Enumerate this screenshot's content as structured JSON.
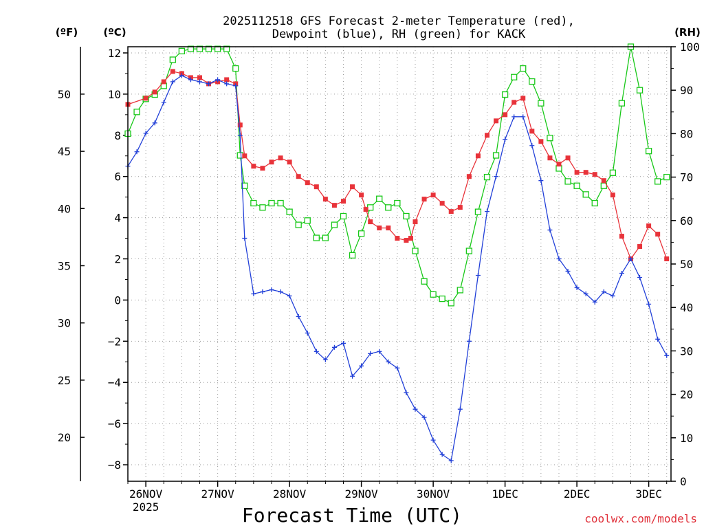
{
  "title_line1": "2025112518 GFS Forecast 2-meter Temperature (red),",
  "title_line2": "Dewpoint (blue), RH (green) for KACK",
  "axis_units": {
    "f": "(ºF)",
    "c": "(ºC)",
    "rh": "(RH)"
  },
  "xlabel": "Forecast Time (UTC)",
  "credit": "coolwx.com/models",
  "colors": {
    "temperature": "#e8333a",
    "dewpoint": "#2240d8",
    "rh": "#18c818",
    "axis": "#000000"
  },
  "chart_data": {
    "type": "line",
    "title": "2025112518 GFS Forecast 2-meter Temperature (red), Dewpoint (blue), RH (green) for KACK",
    "xlabel": "Forecast Time (UTC)",
    "x_unit": "days since 26NOV 00Z",
    "xlim": [
      -0.25,
      7.31
    ],
    "x_ticks": [
      {
        "value": 0,
        "label": "26NOV",
        "sublabel": "2025"
      },
      {
        "value": 1,
        "label": "27NOV",
        "sublabel": ""
      },
      {
        "value": 2,
        "label": "28NOV",
        "sublabel": ""
      },
      {
        "value": 3,
        "label": "29NOV",
        "sublabel": ""
      },
      {
        "value": 4,
        "label": "30NOV",
        "sublabel": ""
      },
      {
        "value": 5,
        "label": "1DEC",
        "sublabel": ""
      },
      {
        "value": 6,
        "label": "2DEC",
        "sublabel": ""
      },
      {
        "value": 7,
        "label": "3DEC",
        "sublabel": ""
      }
    ],
    "ylabel_celsius": "(ºC)",
    "ylim_celsius": [
      -8.8,
      12.3
    ],
    "y_ticks_celsius": [
      -8,
      -6,
      -4,
      -2,
      0,
      2,
      4,
      6,
      8,
      10,
      12
    ],
    "ylabel_fahrenheit": "(ºF)",
    "y_ticks_fahrenheit": [
      20,
      25,
      30,
      35,
      40,
      45,
      50
    ],
    "ylabel_rh": "(RH)",
    "ylim_rh": [
      0,
      100
    ],
    "y_ticks_rh": [
      0,
      10,
      20,
      30,
      40,
      50,
      60,
      70,
      80,
      90,
      100
    ],
    "series": [
      {
        "name": "Temperature",
        "unit": "ºC",
        "color": "#e8333a",
        "marker": "filled-square",
        "points": [
          [
            -0.25,
            9.5
          ],
          [
            0.0,
            9.8
          ],
          [
            0.125,
            10.1
          ],
          [
            0.25,
            10.6
          ],
          [
            0.375,
            11.1
          ],
          [
            0.5,
            11.0
          ],
          [
            0.625,
            10.8
          ],
          [
            0.75,
            10.8
          ],
          [
            0.875,
            10.5
          ],
          [
            1.0,
            10.6
          ],
          [
            1.125,
            10.7
          ],
          [
            1.25,
            10.5
          ],
          [
            1.3125,
            8.5
          ],
          [
            1.375,
            7.0
          ],
          [
            1.5,
            6.5
          ],
          [
            1.625,
            6.4
          ],
          [
            1.75,
            6.7
          ],
          [
            1.875,
            6.9
          ],
          [
            2.0,
            6.7
          ],
          [
            2.125,
            6.0
          ],
          [
            2.25,
            5.7
          ],
          [
            2.375,
            5.5
          ],
          [
            2.5,
            4.9
          ],
          [
            2.625,
            4.6
          ],
          [
            2.75,
            4.8
          ],
          [
            2.875,
            5.5
          ],
          [
            3.0,
            5.1
          ],
          [
            3.0625,
            4.4
          ],
          [
            3.125,
            3.8
          ],
          [
            3.25,
            3.5
          ],
          [
            3.375,
            3.5
          ],
          [
            3.5,
            3.0
          ],
          [
            3.625,
            2.9
          ],
          [
            3.6875,
            3.0
          ],
          [
            3.75,
            3.8
          ],
          [
            3.875,
            4.9
          ],
          [
            4.0,
            5.1
          ],
          [
            4.125,
            4.7
          ],
          [
            4.25,
            4.3
          ],
          [
            4.375,
            4.5
          ],
          [
            4.5,
            6.0
          ],
          [
            4.625,
            7.0
          ],
          [
            4.75,
            8.0
          ],
          [
            4.875,
            8.7
          ],
          [
            5.0,
            9.0
          ],
          [
            5.125,
            9.6
          ],
          [
            5.25,
            9.8
          ],
          [
            5.375,
            8.2
          ],
          [
            5.5,
            7.7
          ],
          [
            5.625,
            6.9
          ],
          [
            5.75,
            6.6
          ],
          [
            5.875,
            6.9
          ],
          [
            6.0,
            6.2
          ],
          [
            6.125,
            6.2
          ],
          [
            6.25,
            6.1
          ],
          [
            6.375,
            5.8
          ],
          [
            6.5,
            5.1
          ],
          [
            6.625,
            3.1
          ],
          [
            6.75,
            2.0
          ],
          [
            6.875,
            2.6
          ],
          [
            7.0,
            3.6
          ],
          [
            7.125,
            3.2
          ],
          [
            7.25,
            2.0
          ]
        ]
      },
      {
        "name": "Dewpoint",
        "unit": "ºC",
        "color": "#2240d8",
        "marker": "plus",
        "points": [
          [
            -0.25,
            6.5
          ],
          [
            -0.125,
            7.2
          ],
          [
            0.0,
            8.1
          ],
          [
            0.125,
            8.6
          ],
          [
            0.25,
            9.6
          ],
          [
            0.375,
            10.6
          ],
          [
            0.5,
            10.9
          ],
          [
            0.625,
            10.7
          ],
          [
            0.75,
            10.6
          ],
          [
            0.875,
            10.5
          ],
          [
            1.0,
            10.7
          ],
          [
            1.125,
            10.5
          ],
          [
            1.25,
            10.4
          ],
          [
            1.3125,
            8.0
          ],
          [
            1.375,
            3.0
          ],
          [
            1.5,
            0.3
          ],
          [
            1.625,
            0.4
          ],
          [
            1.75,
            0.5
          ],
          [
            1.875,
            0.4
          ],
          [
            2.0,
            0.2
          ],
          [
            2.125,
            -0.8
          ],
          [
            2.25,
            -1.6
          ],
          [
            2.375,
            -2.5
          ],
          [
            2.5,
            -2.9
          ],
          [
            2.625,
            -2.3
          ],
          [
            2.75,
            -2.1
          ],
          [
            2.875,
            -3.7
          ],
          [
            3.0,
            -3.2
          ],
          [
            3.125,
            -2.6
          ],
          [
            3.25,
            -2.5
          ],
          [
            3.375,
            -3.0
          ],
          [
            3.5,
            -3.3
          ],
          [
            3.625,
            -4.5
          ],
          [
            3.75,
            -5.3
          ],
          [
            3.875,
            -5.7
          ],
          [
            4.0,
            -6.8
          ],
          [
            4.125,
            -7.5
          ],
          [
            4.25,
            -7.8
          ],
          [
            4.375,
            -5.3
          ],
          [
            4.5,
            -2.0
          ],
          [
            4.625,
            1.2
          ],
          [
            4.75,
            4.3
          ],
          [
            4.875,
            6.0
          ],
          [
            5.0,
            7.8
          ],
          [
            5.125,
            8.9
          ],
          [
            5.25,
            8.9
          ],
          [
            5.375,
            7.5
          ],
          [
            5.5,
            5.8
          ],
          [
            5.625,
            3.4
          ],
          [
            5.75,
            2.0
          ],
          [
            5.875,
            1.4
          ],
          [
            6.0,
            0.6
          ],
          [
            6.125,
            0.3
          ],
          [
            6.25,
            -0.1
          ],
          [
            6.375,
            0.4
          ],
          [
            6.5,
            0.2
          ],
          [
            6.625,
            1.3
          ],
          [
            6.75,
            2.0
          ],
          [
            6.875,
            1.1
          ],
          [
            7.0,
            -0.2
          ],
          [
            7.125,
            -1.9
          ],
          [
            7.25,
            -2.7
          ]
        ]
      },
      {
        "name": "RH",
        "unit": "%",
        "color": "#18c818",
        "marker": "open-square",
        "points": [
          [
            -0.25,
            80
          ],
          [
            -0.125,
            85
          ],
          [
            0.0,
            88
          ],
          [
            0.125,
            89
          ],
          [
            0.25,
            91
          ],
          [
            0.375,
            97
          ],
          [
            0.5,
            99
          ],
          [
            0.625,
            99.5
          ],
          [
            0.75,
            99.5
          ],
          [
            0.875,
            99.5
          ],
          [
            1.0,
            99.5
          ],
          [
            1.125,
            99.5
          ],
          [
            1.25,
            95
          ],
          [
            1.3125,
            75
          ],
          [
            1.375,
            68
          ],
          [
            1.5,
            64
          ],
          [
            1.625,
            63
          ],
          [
            1.75,
            64
          ],
          [
            1.875,
            64
          ],
          [
            2.0,
            62
          ],
          [
            2.125,
            59
          ],
          [
            2.25,
            60
          ],
          [
            2.375,
            56
          ],
          [
            2.5,
            56
          ],
          [
            2.625,
            59
          ],
          [
            2.75,
            61
          ],
          [
            2.875,
            52
          ],
          [
            3.0,
            57
          ],
          [
            3.125,
            63
          ],
          [
            3.25,
            65
          ],
          [
            3.375,
            63
          ],
          [
            3.5,
            64
          ],
          [
            3.625,
            61
          ],
          [
            3.75,
            53
          ],
          [
            3.875,
            46
          ],
          [
            4.0,
            43
          ],
          [
            4.125,
            42
          ],
          [
            4.25,
            41
          ],
          [
            4.375,
            44
          ],
          [
            4.5,
            53
          ],
          [
            4.625,
            62
          ],
          [
            4.75,
            70
          ],
          [
            4.875,
            75
          ],
          [
            5.0,
            89
          ],
          [
            5.125,
            93
          ],
          [
            5.25,
            95
          ],
          [
            5.375,
            92
          ],
          [
            5.5,
            87
          ],
          [
            5.625,
            79
          ],
          [
            5.75,
            72
          ],
          [
            5.875,
            69
          ],
          [
            6.0,
            68
          ],
          [
            6.125,
            66
          ],
          [
            6.25,
            64
          ],
          [
            6.375,
            68
          ],
          [
            6.5,
            71
          ],
          [
            6.625,
            87
          ],
          [
            6.75,
            100
          ],
          [
            6.875,
            90
          ],
          [
            7.0,
            76
          ],
          [
            7.125,
            69
          ],
          [
            7.25,
            70
          ]
        ]
      }
    ]
  }
}
